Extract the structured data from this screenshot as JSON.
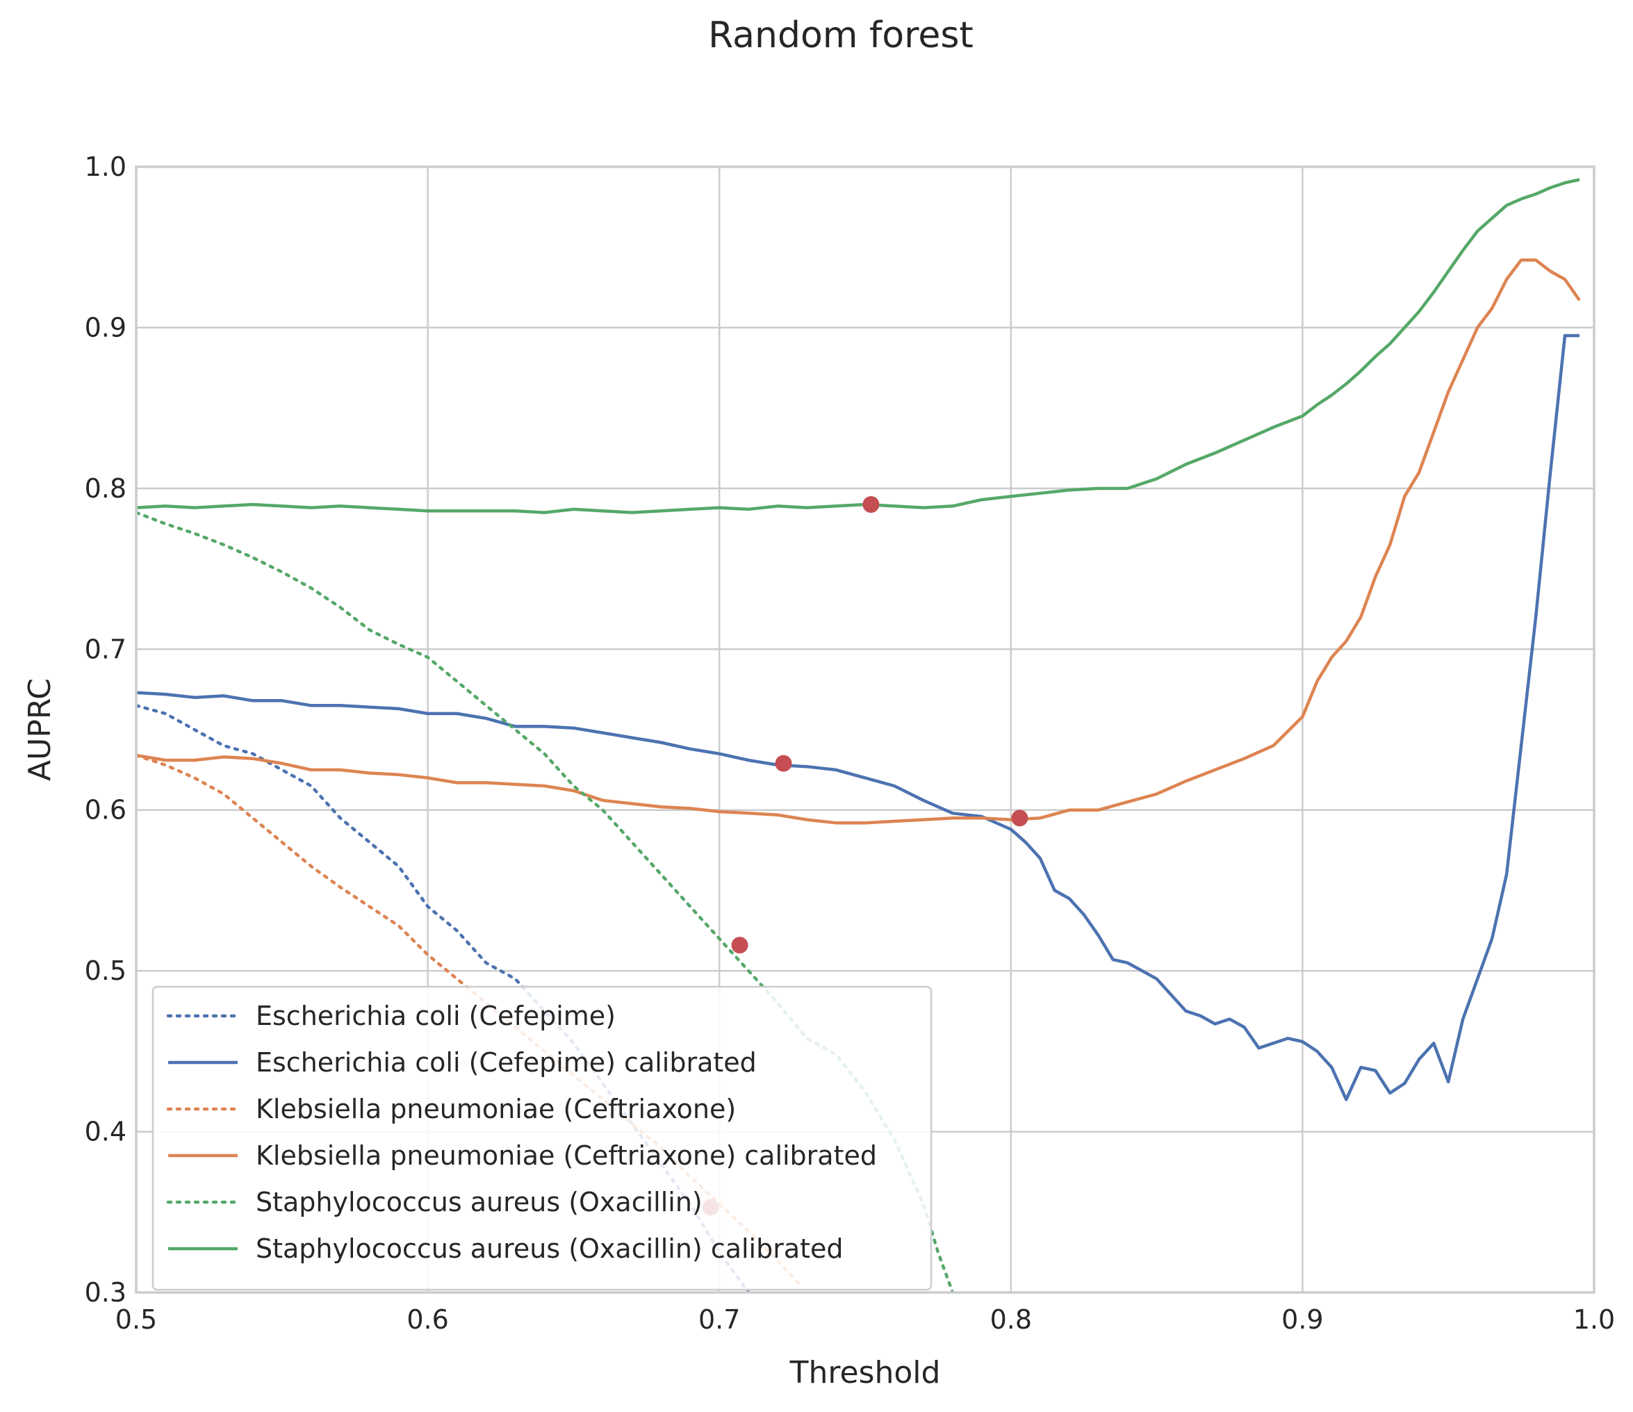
{
  "chart_data": {
    "type": "line",
    "title": "Random forest",
    "xlabel": "Threshold",
    "ylabel": "AUPRC",
    "xlim": [
      0.5,
      1.0
    ],
    "ylim": [
      0.3,
      1.0
    ],
    "xticks": [
      "0.5",
      "0.6",
      "0.7",
      "0.8",
      "0.9",
      "1.0"
    ],
    "yticks": [
      "0.3",
      "0.4",
      "0.5",
      "0.6",
      "0.7",
      "0.8",
      "0.9",
      "1.0"
    ],
    "grid": true,
    "legend_position": "lower-left",
    "series": [
      {
        "name": "Escherichia coli (Cefepime)",
        "style": "dotted",
        "color": "#4c72b0",
        "x": [
          0.5,
          0.51,
          0.52,
          0.53,
          0.54,
          0.55,
          0.56,
          0.57,
          0.58,
          0.59,
          0.6,
          0.61,
          0.62,
          0.63,
          0.64,
          0.65,
          0.66,
          0.67,
          0.68,
          0.69,
          0.7,
          0.71
        ],
        "y": [
          0.665,
          0.66,
          0.65,
          0.64,
          0.635,
          0.625,
          0.615,
          0.595,
          0.58,
          0.565,
          0.54,
          0.525,
          0.505,
          0.495,
          0.475,
          0.455,
          0.43,
          0.405,
          0.38,
          0.355,
          0.325,
          0.3
        ]
      },
      {
        "name": "Escherichia coli (Cefepime) calibrated",
        "style": "solid",
        "color": "#4c72b0",
        "x": [
          0.5,
          0.51,
          0.52,
          0.53,
          0.54,
          0.55,
          0.56,
          0.57,
          0.58,
          0.59,
          0.6,
          0.61,
          0.62,
          0.63,
          0.64,
          0.65,
          0.66,
          0.67,
          0.68,
          0.69,
          0.7,
          0.71,
          0.72,
          0.73,
          0.74,
          0.75,
          0.76,
          0.77,
          0.78,
          0.79,
          0.8,
          0.805,
          0.81,
          0.815,
          0.82,
          0.825,
          0.83,
          0.835,
          0.84,
          0.845,
          0.85,
          0.855,
          0.86,
          0.865,
          0.87,
          0.875,
          0.88,
          0.885,
          0.89,
          0.895,
          0.9,
          0.905,
          0.91,
          0.915,
          0.92,
          0.925,
          0.93,
          0.935,
          0.94,
          0.945,
          0.95,
          0.955,
          0.96,
          0.965,
          0.97,
          0.975,
          0.98,
          0.985,
          0.99,
          0.995
        ],
        "y": [
          0.673,
          0.672,
          0.67,
          0.671,
          0.668,
          0.668,
          0.665,
          0.665,
          0.664,
          0.663,
          0.66,
          0.66,
          0.657,
          0.652,
          0.652,
          0.651,
          0.648,
          0.645,
          0.642,
          0.638,
          0.635,
          0.631,
          0.628,
          0.627,
          0.625,
          0.62,
          0.615,
          0.606,
          0.598,
          0.596,
          0.588,
          0.58,
          0.57,
          0.55,
          0.545,
          0.535,
          0.522,
          0.507,
          0.505,
          0.5,
          0.495,
          0.485,
          0.475,
          0.472,
          0.467,
          0.47,
          0.465,
          0.452,
          0.455,
          0.458,
          0.456,
          0.45,
          0.44,
          0.42,
          0.44,
          0.438,
          0.424,
          0.43,
          0.445,
          0.455,
          0.431,
          0.47,
          0.495,
          0.52,
          0.56,
          0.64,
          0.72,
          0.81,
          0.895,
          0.895
        ]
      },
      {
        "name": "Klebsiella pneumoniae (Ceftriaxone)",
        "style": "dotted",
        "color": "#dd8452",
        "x": [
          0.5,
          0.51,
          0.52,
          0.53,
          0.54,
          0.55,
          0.56,
          0.57,
          0.58,
          0.59,
          0.6,
          0.61,
          0.62,
          0.63,
          0.64,
          0.65,
          0.66,
          0.67,
          0.68,
          0.69,
          0.7,
          0.71,
          0.72,
          0.728
        ],
        "y": [
          0.634,
          0.628,
          0.62,
          0.61,
          0.595,
          0.58,
          0.565,
          0.552,
          0.54,
          0.528,
          0.51,
          0.495,
          0.48,
          0.465,
          0.45,
          0.435,
          0.42,
          0.405,
          0.39,
          0.372,
          0.355,
          0.338,
          0.32,
          0.304
        ]
      },
      {
        "name": "Klebsiella pneumoniae (Ceftriaxone) calibrated",
        "style": "solid",
        "color": "#dd8452",
        "x": [
          0.5,
          0.51,
          0.52,
          0.53,
          0.54,
          0.55,
          0.56,
          0.57,
          0.58,
          0.59,
          0.6,
          0.61,
          0.62,
          0.63,
          0.64,
          0.65,
          0.66,
          0.67,
          0.68,
          0.69,
          0.7,
          0.71,
          0.72,
          0.73,
          0.74,
          0.75,
          0.76,
          0.77,
          0.78,
          0.79,
          0.8,
          0.81,
          0.82,
          0.83,
          0.84,
          0.85,
          0.86,
          0.87,
          0.88,
          0.89,
          0.9,
          0.905,
          0.91,
          0.915,
          0.92,
          0.925,
          0.93,
          0.935,
          0.94,
          0.945,
          0.95,
          0.955,
          0.96,
          0.965,
          0.97,
          0.975,
          0.98,
          0.985,
          0.99,
          0.995
        ],
        "y": [
          0.634,
          0.631,
          0.631,
          0.633,
          0.632,
          0.629,
          0.625,
          0.625,
          0.623,
          0.622,
          0.62,
          0.617,
          0.617,
          0.616,
          0.615,
          0.612,
          0.606,
          0.604,
          0.602,
          0.601,
          0.599,
          0.598,
          0.597,
          0.594,
          0.592,
          0.592,
          0.593,
          0.594,
          0.595,
          0.595,
          0.594,
          0.595,
          0.6,
          0.6,
          0.605,
          0.61,
          0.618,
          0.625,
          0.632,
          0.64,
          0.658,
          0.68,
          0.695,
          0.705,
          0.72,
          0.745,
          0.765,
          0.795,
          0.81,
          0.835,
          0.86,
          0.88,
          0.9,
          0.912,
          0.93,
          0.942,
          0.942,
          0.935,
          0.93,
          0.917
        ]
      },
      {
        "name": "Staphylococcus aureus (Oxacillin)",
        "style": "dotted",
        "color": "#55a868",
        "x": [
          0.5,
          0.51,
          0.52,
          0.53,
          0.54,
          0.55,
          0.56,
          0.57,
          0.58,
          0.59,
          0.6,
          0.61,
          0.62,
          0.63,
          0.64,
          0.65,
          0.66,
          0.67,
          0.68,
          0.69,
          0.7,
          0.71,
          0.72,
          0.73,
          0.74,
          0.75,
          0.76,
          0.77,
          0.775,
          0.78
        ],
        "y": [
          0.785,
          0.778,
          0.772,
          0.765,
          0.757,
          0.748,
          0.738,
          0.726,
          0.712,
          0.703,
          0.695,
          0.68,
          0.665,
          0.65,
          0.635,
          0.615,
          0.6,
          0.58,
          0.56,
          0.54,
          0.52,
          0.5,
          0.48,
          0.458,
          0.448,
          0.425,
          0.395,
          0.355,
          0.325,
          0.3
        ]
      },
      {
        "name": "Staphylococcus aureus (Oxacillin) calibrated",
        "style": "solid",
        "color": "#55a868",
        "x": [
          0.5,
          0.51,
          0.52,
          0.53,
          0.54,
          0.55,
          0.56,
          0.57,
          0.58,
          0.59,
          0.6,
          0.61,
          0.62,
          0.63,
          0.64,
          0.65,
          0.66,
          0.67,
          0.68,
          0.69,
          0.7,
          0.71,
          0.72,
          0.73,
          0.74,
          0.75,
          0.76,
          0.77,
          0.78,
          0.79,
          0.8,
          0.81,
          0.82,
          0.83,
          0.84,
          0.85,
          0.86,
          0.87,
          0.88,
          0.89,
          0.9,
          0.905,
          0.91,
          0.915,
          0.92,
          0.925,
          0.93,
          0.935,
          0.94,
          0.945,
          0.95,
          0.955,
          0.96,
          0.965,
          0.97,
          0.975,
          0.98,
          0.985,
          0.99,
          0.995
        ],
        "y": [
          0.788,
          0.789,
          0.788,
          0.789,
          0.79,
          0.789,
          0.788,
          0.789,
          0.788,
          0.787,
          0.786,
          0.786,
          0.786,
          0.786,
          0.785,
          0.787,
          0.786,
          0.785,
          0.786,
          0.787,
          0.788,
          0.787,
          0.789,
          0.788,
          0.789,
          0.79,
          0.789,
          0.788,
          0.789,
          0.793,
          0.795,
          0.797,
          0.799,
          0.8,
          0.8,
          0.806,
          0.815,
          0.822,
          0.83,
          0.838,
          0.845,
          0.852,
          0.858,
          0.865,
          0.873,
          0.882,
          0.89,
          0.9,
          0.91,
          0.922,
          0.935,
          0.948,
          0.96,
          0.968,
          0.976,
          0.98,
          0.983,
          0.987,
          0.99,
          0.992
        ]
      }
    ],
    "markers": [
      {
        "x": 0.752,
        "y": 0.79
      },
      {
        "x": 0.722,
        "y": 0.629
      },
      {
        "x": 0.803,
        "y": 0.595
      },
      {
        "x": 0.707,
        "y": 0.516
      },
      {
        "x": 0.697,
        "y": 0.353
      }
    ],
    "marker_color": "#c44e52"
  }
}
